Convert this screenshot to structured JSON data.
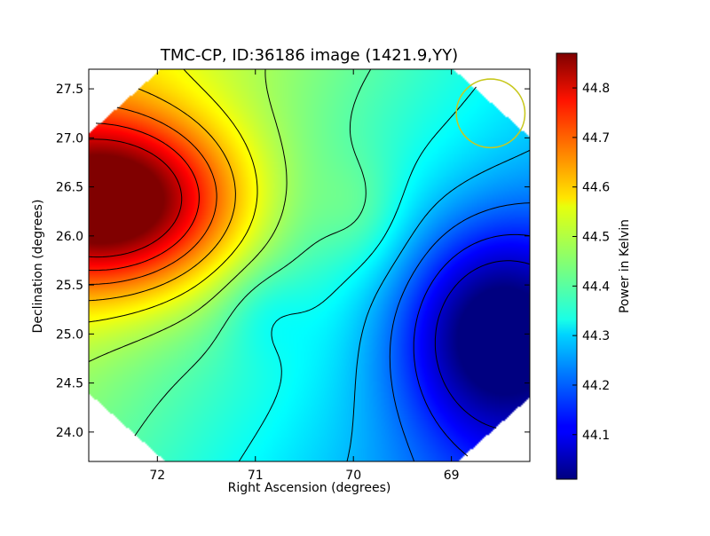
{
  "chart_data": {
    "type": "heatmap",
    "title": "TMC-CP, ID:36186 image (1421.9,YY)",
    "xlabel": "Right Ascension (degrees)",
    "ylabel": "Declination (degrees)",
    "x_ticks": [
      "72",
      "71",
      "70",
      "69"
    ],
    "y_ticks": [
      "24.0",
      "24.5",
      "25.0",
      "25.5",
      "26.0",
      "26.5",
      "27.0",
      "27.5"
    ],
    "xlim": [
      72.7,
      68.2
    ],
    "ylim": [
      23.7,
      27.7
    ],
    "x_inverted": true,
    "colorbar": {
      "label": "Power in Kelvin",
      "range": [
        44.01,
        44.87
      ],
      "ticks": [
        "44.1",
        "44.2",
        "44.3",
        "44.4",
        "44.5",
        "44.6",
        "44.7",
        "44.8"
      ],
      "colormap": "jet"
    },
    "peaks": [
      {
        "name": "maximum",
        "ra": 72.5,
        "dec": 26.3,
        "value": 44.87
      },
      {
        "name": "minimum",
        "ra": 68.5,
        "dec": 25.0,
        "value": 44.01
      }
    ],
    "beam_circle": {
      "ra": 68.6,
      "dec": 27.25,
      "radius_deg": 0.35,
      "color": "#c8c81e"
    },
    "contour_color": "#000000",
    "contour_levels": 12
  }
}
